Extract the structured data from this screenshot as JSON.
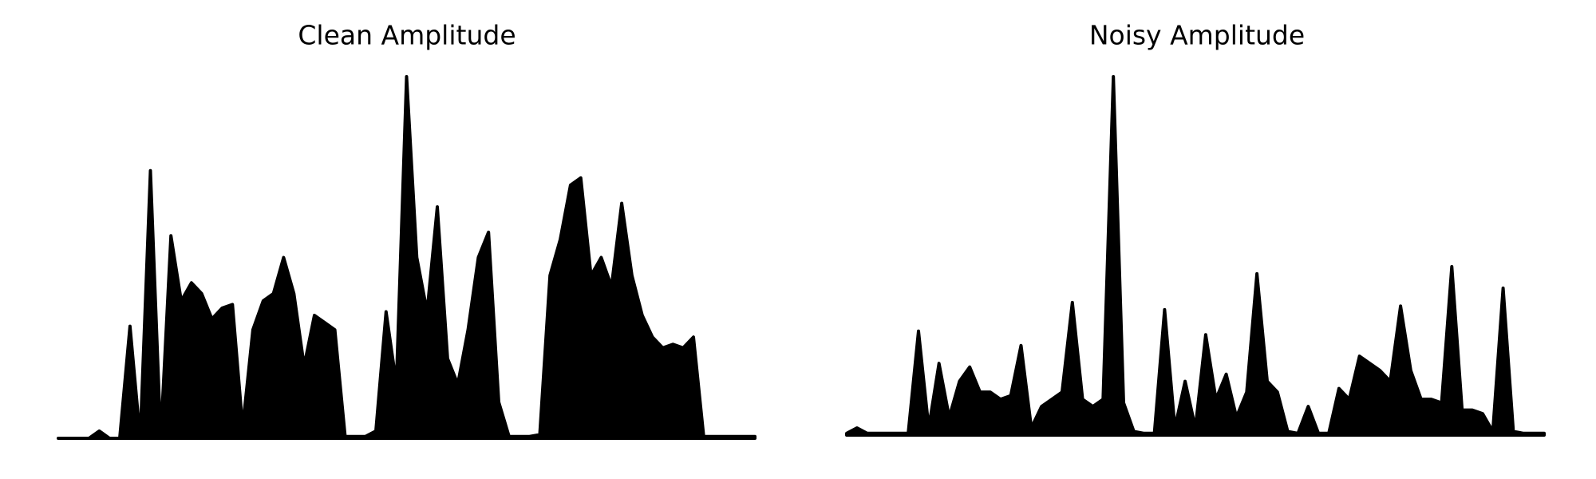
{
  "chart_data": [
    {
      "type": "area",
      "title": "Clean Amplitude",
      "color": "#000000",
      "ylim": [
        0,
        1
      ],
      "values": [
        0,
        0,
        0,
        0,
        0.02,
        0,
        0,
        0.31,
        0,
        0.74,
        0,
        0.56,
        0.38,
        0.43,
        0.4,
        0.33,
        0.36,
        0.37,
        0.03,
        0.3,
        0.38,
        0.4,
        0.5,
        0.4,
        0.2,
        0.34,
        0.32,
        0.3,
        0.005,
        0.005,
        0.005,
        0.02,
        0.35,
        0.15,
        1.0,
        0.5,
        0.35,
        0.64,
        0.22,
        0.15,
        0.3,
        0.5,
        0.57,
        0.1,
        0.005,
        0.005,
        0.005,
        0.01,
        0.45,
        0.55,
        0.7,
        0.72,
        0.45,
        0.5,
        0.42,
        0.65,
        0.45,
        0.34,
        0.28,
        0.25,
        0.26,
        0.25,
        0.28,
        0.005,
        0.005,
        0.005,
        0.005,
        0.005,
        0.005
      ]
    },
    {
      "type": "area",
      "title": "Noisy Amplitude",
      "color": "#000000",
      "ylim": [
        0,
        1
      ],
      "values": [
        0.005,
        0.02,
        0.005,
        0.005,
        0.005,
        0.005,
        0.005,
        0.29,
        0.02,
        0.2,
        0.05,
        0.15,
        0.19,
        0.12,
        0.12,
        0.1,
        0.11,
        0.25,
        0.02,
        0.08,
        0.1,
        0.12,
        0.37,
        0.1,
        0.08,
        0.1,
        1.0,
        0.09,
        0.01,
        0.005,
        0.005,
        0.35,
        0.02,
        0.15,
        0.02,
        0.28,
        0.1,
        0.17,
        0.05,
        0.12,
        0.45,
        0.15,
        0.12,
        0.01,
        0.005,
        0.08,
        0.005,
        0.005,
        0.13,
        0.1,
        0.22,
        0.2,
        0.18,
        0.15,
        0.36,
        0.18,
        0.1,
        0.1,
        0.09,
        0.47,
        0.07,
        0.07,
        0.06,
        0.01,
        0.41,
        0.01,
        0.005,
        0.005,
        0.005
      ]
    }
  ]
}
